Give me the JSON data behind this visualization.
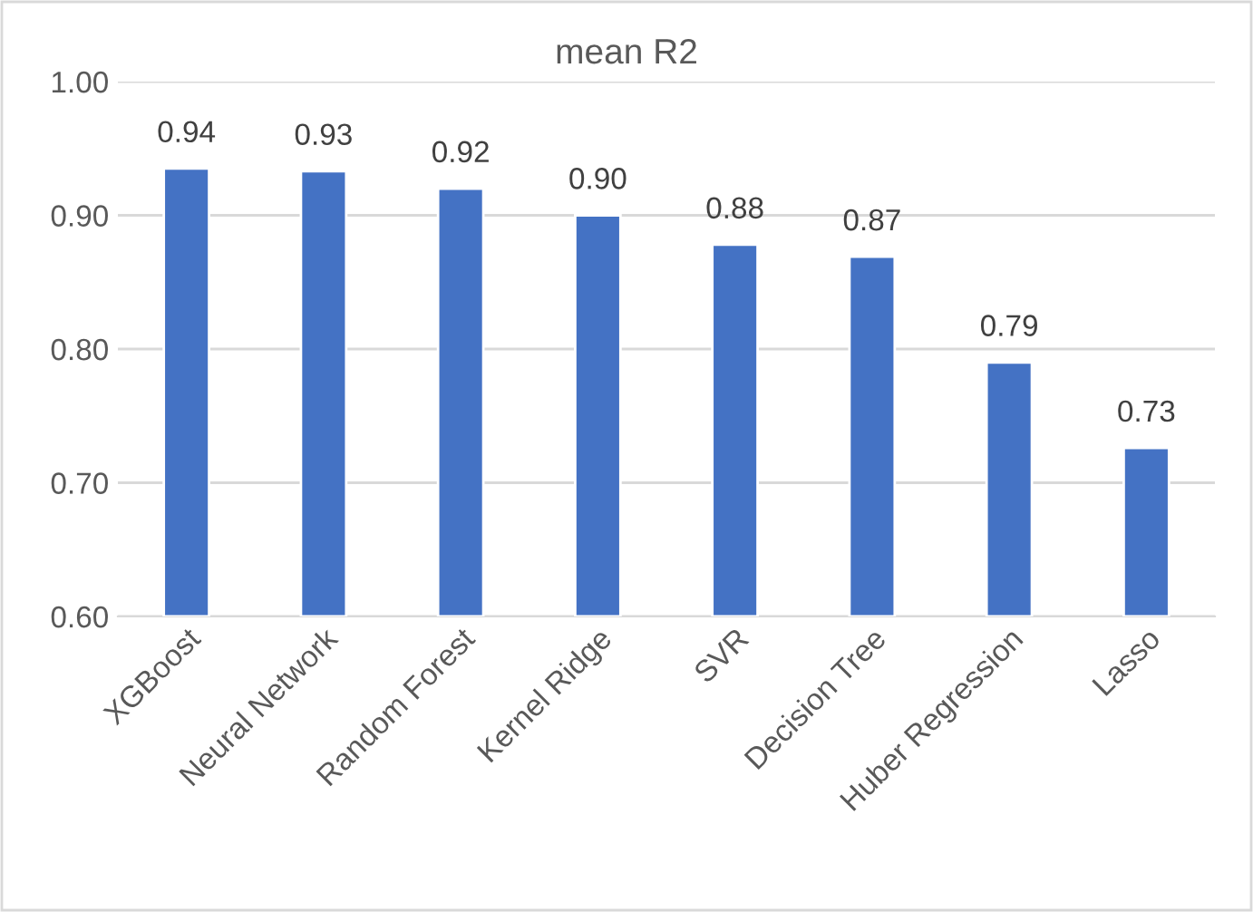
{
  "chart_data": {
    "type": "bar",
    "title": "mean R2",
    "categories": [
      "XGBoost",
      "Neural Network",
      "Random Forest",
      "Kernel Ridge",
      "SVR",
      "Decision Tree",
      "Huber Regression",
      "Lasso"
    ],
    "values": [
      0.935,
      0.933,
      0.92,
      0.9,
      0.878,
      0.869,
      0.79,
      0.726
    ],
    "value_labels": [
      "0.94",
      "0.93",
      "0.92",
      "0.90",
      "0.88",
      "0.87",
      "0.79",
      "0.73"
    ],
    "color": "#4472c4",
    "ylim": [
      0.6,
      1.0
    ],
    "yticks": [
      {
        "value": 0.6,
        "label": "0.60"
      },
      {
        "value": 0.7,
        "label": "0.70"
      },
      {
        "value": 0.8,
        "label": "0.80"
      },
      {
        "value": 0.9,
        "label": "0.90"
      },
      {
        "value": 1.0,
        "label": "1.00"
      }
    ],
    "grid": "y"
  }
}
